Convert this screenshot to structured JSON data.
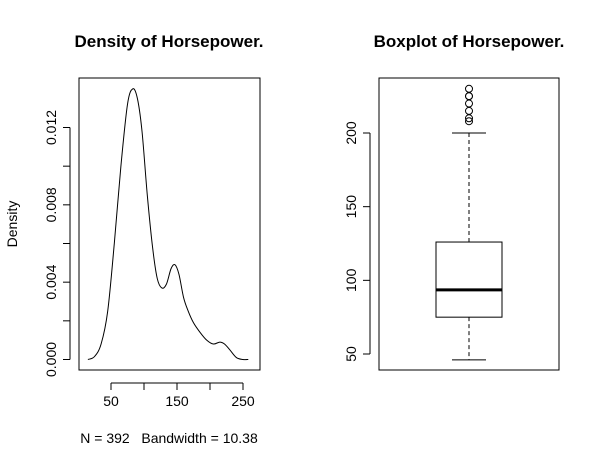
{
  "chart_data": [
    {
      "type": "line",
      "title": "Density of Horsepower.",
      "xlabel": "N = 392   Bandwidth = 10.38",
      "ylabel": "Density",
      "xlim": [
        0,
        270
      ],
      "ylim": [
        0,
        0.0143
      ],
      "x_ticks": [
        50,
        150,
        250
      ],
      "x_tick_labels": [
        "50",
        "150",
        "250"
      ],
      "y_ticks": [
        0.0,
        0.002,
        0.004,
        0.006,
        0.008,
        0.01,
        0.012
      ],
      "y_tick_labels": [
        "0.000",
        "",
        "0.004",
        "",
        "0.008",
        "",
        "0.012"
      ],
      "grid": false,
      "series": [
        {
          "x": [
            15,
            25,
            35,
            45,
            55,
            65,
            75,
            83,
            90,
            97,
            105,
            113,
            120,
            127,
            134,
            141,
            147,
            153,
            160,
            167,
            175,
            185,
            195,
            205,
            215,
            222,
            230,
            240,
            250,
            258
          ],
          "y": [
            0.0,
            0.00015,
            0.0008,
            0.0025,
            0.006,
            0.01,
            0.0132,
            0.014,
            0.0135,
            0.0118,
            0.0085,
            0.0058,
            0.0042,
            0.0037,
            0.0039,
            0.0047,
            0.0049,
            0.0044,
            0.0032,
            0.0025,
            0.0019,
            0.0014,
            0.001,
            0.0008,
            0.0009,
            0.0008,
            0.0005,
            0.0001,
            0.0,
            0.0
          ]
        }
      ]
    },
    {
      "type": "boxplot",
      "title": "Boxplot of Horsepower.",
      "ylim": [
        40,
        238
      ],
      "y_ticks": [
        50,
        100,
        150,
        200
      ],
      "y_tick_labels": [
        "50",
        "100",
        "150",
        "200"
      ],
      "grid": false,
      "box": {
        "min": 46,
        "q1": 75,
        "median": 93.5,
        "q3": 126,
        "max": 200,
        "outliers": [
          208,
          210,
          215,
          220,
          225,
          225,
          230
        ]
      }
    }
  ]
}
